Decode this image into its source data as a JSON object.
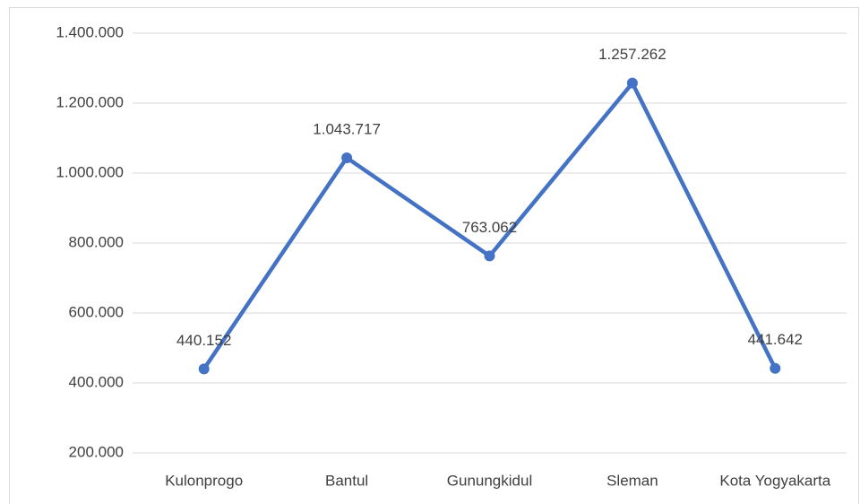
{
  "chart_data": {
    "type": "line",
    "categories": [
      "Kulonprogo",
      "Bantul",
      "Gunungkidul",
      "Sleman",
      "Kota Yogyakarta"
    ],
    "values": [
      440152,
      1043717,
      763062,
      1257262,
      441642
    ],
    "value_labels": [
      "440.152",
      "1.043.717",
      "763.062",
      "1.257.262",
      "441.642"
    ],
    "color": "#4472c4",
    "ylim": [
      200000,
      1400000
    ],
    "yticks": [
      {
        "value": 200000,
        "label": "200.000"
      },
      {
        "value": 400000,
        "label": "400.000"
      },
      {
        "value": 600000,
        "label": "600.000"
      },
      {
        "value": 800000,
        "label": "800.000"
      },
      {
        "value": 1000000,
        "label": "1.000.000"
      },
      {
        "value": 1200000,
        "label": "1.200.000"
      },
      {
        "value": 1400000,
        "label": "1.400.000"
      }
    ],
    "grid": true
  }
}
